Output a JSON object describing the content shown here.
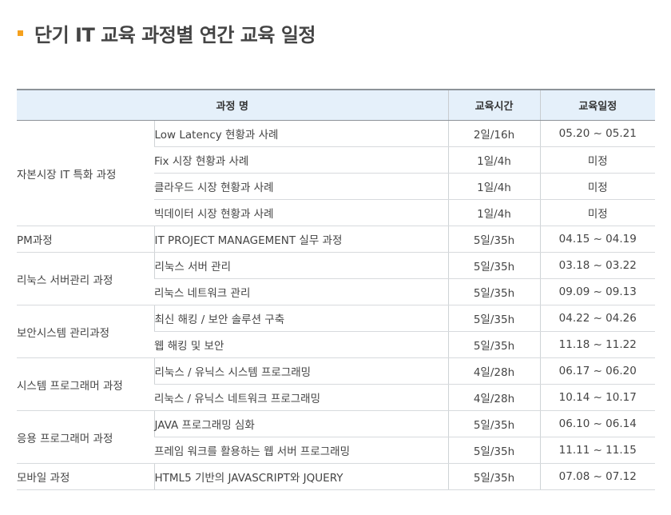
{
  "heading": {
    "title": "단기 IT 교육 과정별 연간 교육 일정"
  },
  "table": {
    "headers": {
      "course": "과정 명",
      "hours": "교육시간",
      "dates": "교육일정"
    },
    "groups": [
      {
        "category": "자본시장 IT 특화 과정",
        "courses": [
          {
            "name": "Low Latency 현황과 사례",
            "hours": "2일/16h",
            "dates": "05.20 ~ 05.21"
          },
          {
            "name": "Fix 시장 현황과 사례",
            "hours": "1일/4h",
            "dates": "미정"
          },
          {
            "name": "클라우드 시장 현황과 사례",
            "hours": "1일/4h",
            "dates": "미정"
          },
          {
            "name": "빅데이터 시장 현황과 사례",
            "hours": "1일/4h",
            "dates": "미정"
          }
        ]
      },
      {
        "category": "PM과정",
        "courses": [
          {
            "name": "IT PROJECT MANAGEMENT 실무 과정",
            "hours": "5일/35h",
            "dates": "04.15 ~ 04.19"
          }
        ]
      },
      {
        "category": "리눅스 서버관리 과정",
        "courses": [
          {
            "name": "리눅스 서버 관리",
            "hours": "5일/35h",
            "dates": "03.18 ~ 03.22"
          },
          {
            "name": "리눅스 네트워크 관리",
            "hours": "5일/35h",
            "dates": "09.09 ~ 09.13"
          }
        ]
      },
      {
        "category": "보안시스템 관리과정",
        "courses": [
          {
            "name": "최신 해킹 / 보안 솔루션 구축",
            "hours": "5일/35h",
            "dates": "04.22 ~ 04.26"
          },
          {
            "name": "웹 해킹 및 보안",
            "hours": "5일/35h",
            "dates": "11.18 ~ 11.22"
          }
        ]
      },
      {
        "category": "시스템 프로그래머 과정",
        "courses": [
          {
            "name": "리눅스  / 유닉스 시스템 프로그래밍",
            "hours": "4일/28h",
            "dates": "06.17 ~ 06.20"
          },
          {
            "name": "리눅스  / 유닉스 네트워크 프로그래밍",
            "hours": "4일/28h",
            "dates": "10.14 ~ 10.17"
          }
        ]
      },
      {
        "category": "응용 프로그래머 과정",
        "courses": [
          {
            "name": "JAVA 프로그래밍 심화",
            "hours": "5일/35h",
            "dates": "06.10 ~ 06.14"
          },
          {
            "name": "프레임 워크를 활용하는 웹 서버 프로그래밍",
            "hours": "5일/35h",
            "dates": "11.11 ~ 11.15"
          }
        ]
      },
      {
        "category": "모바일 과정",
        "courses": [
          {
            "name": "HTML5 기반의 JAVASCRIPT와 JQUERY",
            "hours": "5일/35h",
            "dates": "07.08 ~ 07.12"
          }
        ]
      }
    ]
  },
  "colors": {
    "bullet": "#f5a11e",
    "header_bg": "#e5f0fa",
    "rule": "#8d9399"
  }
}
